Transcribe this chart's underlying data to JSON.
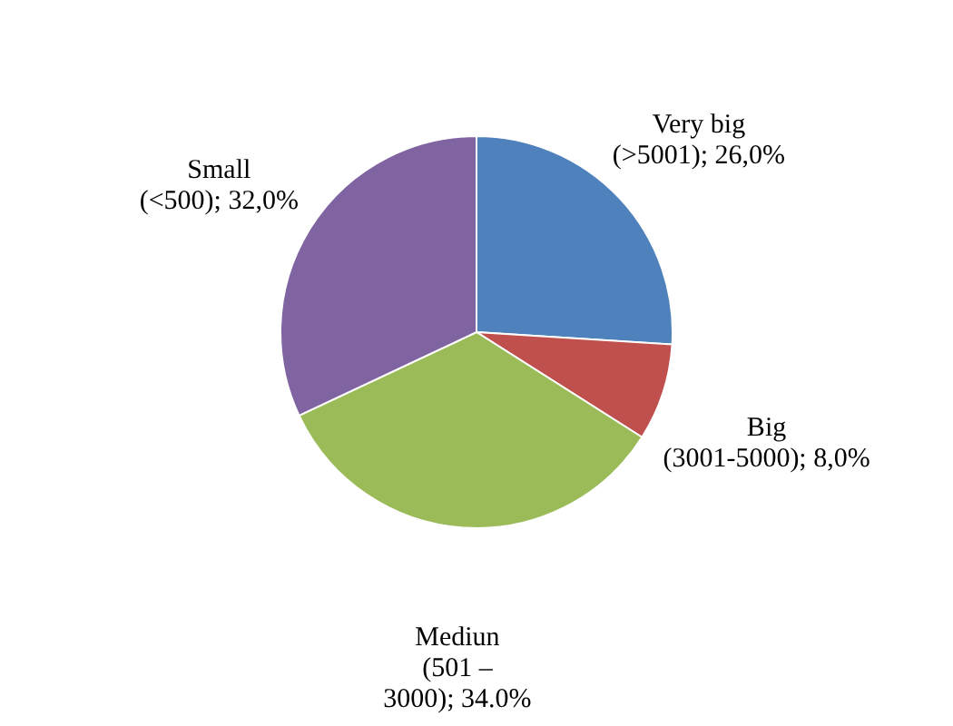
{
  "chart_data": {
    "type": "pie",
    "categories": [
      "Very big (>5001)",
      "Big (3001-5000)",
      "Mediun (501 – 3000)",
      "Small (<500)"
    ],
    "values": [
      26,
      8,
      34,
      32
    ],
    "value_labels": [
      "26,0%",
      "8,0%",
      "34.0%",
      "32,0%"
    ],
    "colors": [
      "#4f81bd",
      "#c0504d",
      "#9bbb59",
      "#8064a2"
    ],
    "legend": false
  }
}
